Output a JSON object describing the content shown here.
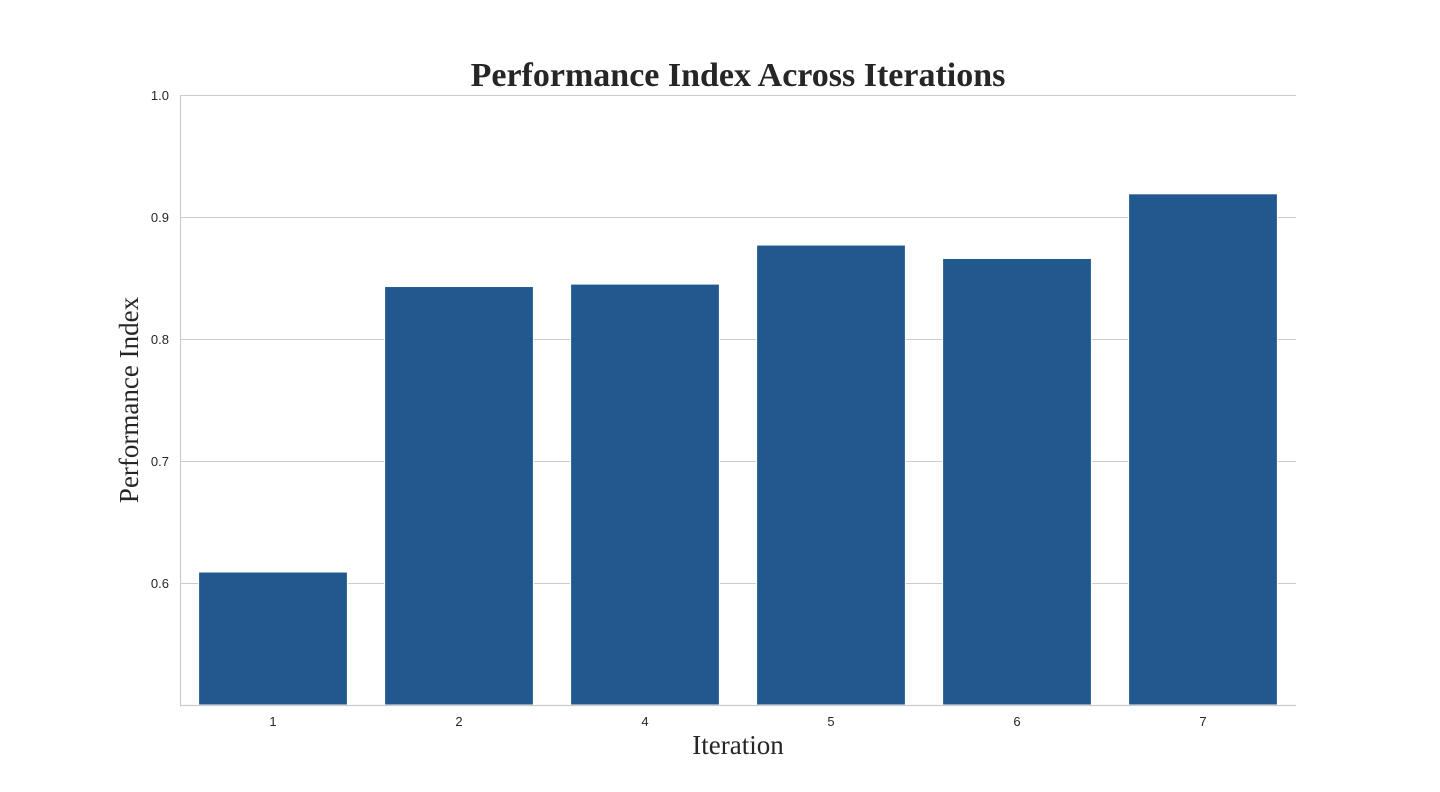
{
  "chart_data": {
    "type": "bar",
    "title": "Performance Index Across Iterations",
    "xlabel": "Iteration",
    "ylabel": "Performance Index",
    "categories": [
      "1",
      "2",
      "4",
      "5",
      "6",
      "7"
    ],
    "values": [
      0.609,
      0.843,
      0.845,
      0.877,
      0.866,
      0.919
    ],
    "ylim": [
      0.5,
      1.0
    ],
    "yticks": [
      "0.6",
      "0.7",
      "0.8",
      "0.9",
      "1.0"
    ],
    "grid": "horizontal",
    "bar_color": "#21588e",
    "legend": "none"
  }
}
